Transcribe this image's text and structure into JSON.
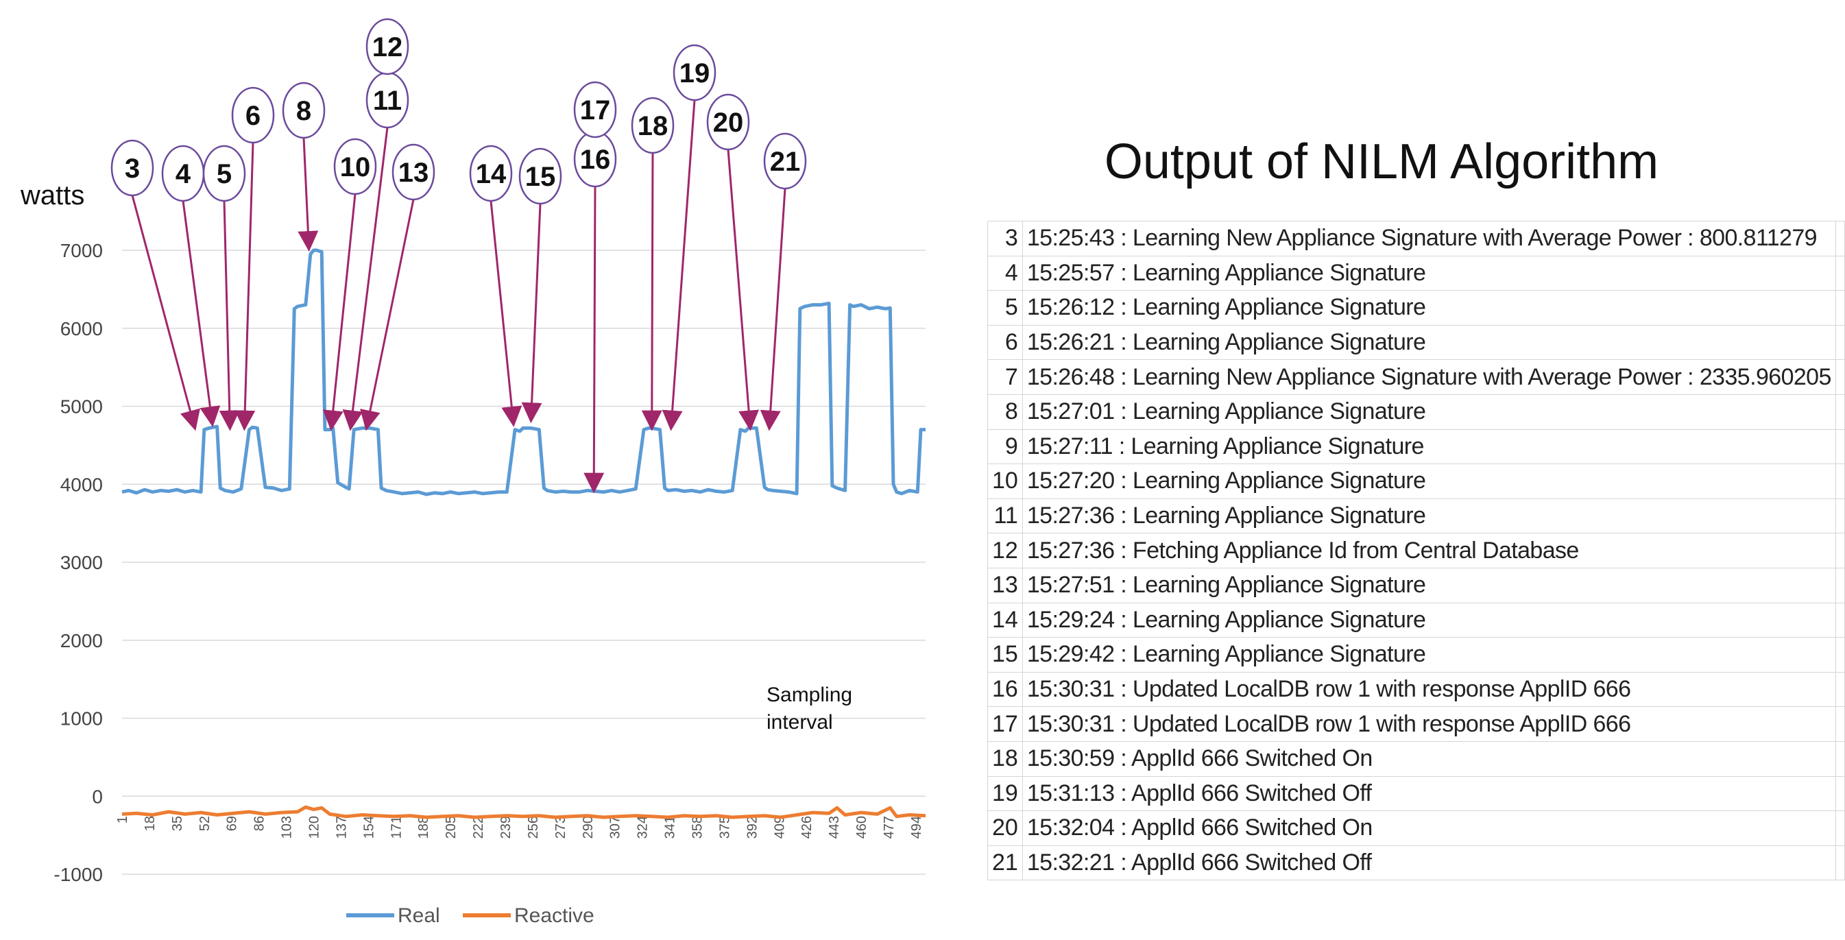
{
  "chart_data": {
    "type": "line",
    "ylabel": "watts",
    "xlabel": "Sampling interval",
    "ylim": [
      -1000,
      7000
    ],
    "yticks": [
      "7000",
      "6000",
      "5000",
      "4000",
      "3000",
      "2000",
      "1000",
      "0",
      "-1000"
    ],
    "xtick_labels": [
      "1",
      "18",
      "35",
      "52",
      "69",
      "86",
      "103",
      "120",
      "137",
      "154",
      "171",
      "188",
      "205",
      "222",
      "239",
      "256",
      "273",
      "290",
      "307",
      "324",
      "341",
      "358",
      "375",
      "392",
      "409",
      "426",
      "443",
      "460",
      "477",
      "494"
    ],
    "grid": true,
    "legend": "bottom",
    "series": [
      {
        "name": "Real",
        "color": "#5b9bd5",
        "x": [
          1,
          5,
          10,
          15,
          20,
          25,
          30,
          35,
          40,
          45,
          50,
          52,
          55,
          60,
          62,
          65,
          70,
          75,
          80,
          82,
          85,
          90,
          95,
          100,
          105,
          108,
          110,
          115,
          118,
          120,
          122,
          125,
          127,
          130,
          132,
          135,
          140,
          142,
          145,
          150,
          152,
          155,
          160,
          162,
          165,
          170,
          175,
          180,
          185,
          190,
          195,
          200,
          205,
          210,
          215,
          220,
          225,
          230,
          235,
          240,
          245,
          248,
          250,
          255,
          260,
          263,
          265,
          270,
          275,
          280,
          285,
          290,
          295,
          300,
          305,
          310,
          315,
          320,
          325,
          328,
          330,
          335,
          338,
          340,
          345,
          350,
          355,
          360,
          365,
          370,
          375,
          380,
          385,
          388,
          390,
          395,
          400,
          402,
          405,
          410,
          415,
          420,
          422,
          425,
          430,
          435,
          440,
          442,
          445,
          450,
          453,
          455,
          460,
          465,
          470,
          475,
          478,
          480,
          482,
          485,
          490,
          495,
          497,
          500
        ],
        "y": [
          3900,
          3920,
          3890,
          3930,
          3900,
          3920,
          3910,
          3930,
          3900,
          3920,
          3900,
          4700,
          4720,
          4740,
          3950,
          3920,
          3900,
          3940,
          4700,
          4730,
          4720,
          3960,
          3950,
          3920,
          3940,
          6250,
          6280,
          6300,
          6950,
          7000,
          7000,
          6980,
          4700,
          4700,
          4720,
          4020,
          3960,
          3940,
          4700,
          4720,
          4720,
          4720,
          4700,
          3950,
          3920,
          3900,
          3880,
          3890,
          3900,
          3870,
          3890,
          3880,
          3900,
          3880,
          3890,
          3900,
          3880,
          3890,
          3900,
          3900,
          4700,
          4680,
          4720,
          4720,
          4700,
          3950,
          3920,
          3900,
          3910,
          3900,
          3900,
          3920,
          3910,
          3900,
          3920,
          3900,
          3920,
          3940,
          4700,
          4720,
          4720,
          4700,
          3950,
          3920,
          3930,
          3910,
          3920,
          3900,
          3930,
          3910,
          3900,
          3920,
          4700,
          4680,
          4720,
          4720,
          3960,
          3930,
          3920,
          3910,
          3900,
          3880,
          6250,
          6280,
          6300,
          6300,
          6320,
          3980,
          3950,
          3920,
          6300,
          6280,
          6300,
          6250,
          6270,
          6250,
          6260,
          4000,
          3900,
          3880,
          3920,
          3900,
          4700,
          4700
        ]
      },
      {
        "name": "Reactive",
        "color": "#ed7d31",
        "x": [
          1,
          10,
          20,
          30,
          40,
          50,
          60,
          70,
          80,
          90,
          100,
          110,
          115,
          120,
          125,
          130,
          140,
          150,
          160,
          170,
          180,
          190,
          200,
          210,
          220,
          230,
          240,
          250,
          260,
          270,
          280,
          290,
          300,
          310,
          320,
          330,
          340,
          350,
          360,
          370,
          380,
          390,
          400,
          410,
          420,
          430,
          440,
          445,
          450,
          460,
          470,
          478,
          482,
          490,
          500
        ],
        "y": [
          -230,
          -220,
          -240,
          -200,
          -230,
          -210,
          -240,
          -220,
          -200,
          -230,
          -210,
          -200,
          -140,
          -170,
          -150,
          -230,
          -260,
          -240,
          -250,
          -260,
          -250,
          -270,
          -260,
          -250,
          -270,
          -260,
          -250,
          -260,
          -250,
          -270,
          -260,
          -250,
          -270,
          -260,
          -250,
          -260,
          -270,
          -250,
          -260,
          -250,
          -270,
          -260,
          -250,
          -270,
          -240,
          -210,
          -220,
          -150,
          -240,
          -210,
          -230,
          -150,
          -260,
          -240,
          -250
        ]
      }
    ],
    "annotations": [
      {
        "label": "3",
        "x": 46,
        "y": 4700
      },
      {
        "label": "4",
        "x": 57,
        "y": 4750
      },
      {
        "label": "5",
        "x": 68,
        "y": 4700
      },
      {
        "label": "6",
        "x": 77,
        "y": 4700
      },
      {
        "label": "8",
        "x": 117,
        "y": 7000
      },
      {
        "label": "10",
        "x": 131,
        "y": 4700
      },
      {
        "label": "11",
        "x": 143,
        "y": 4700
      },
      {
        "label": "12",
        "x": 143,
        "y": 4700
      },
      {
        "label": "13",
        "x": 153,
        "y": 4700
      },
      {
        "label": "14",
        "x": 244,
        "y": 4750
      },
      {
        "label": "15",
        "x": 255,
        "y": 4800
      },
      {
        "label": "16",
        "x": 294,
        "y": 3900
      },
      {
        "label": "17",
        "x": 294,
        "y": 3900
      },
      {
        "label": "18",
        "x": 330,
        "y": 4700
      },
      {
        "label": "19",
        "x": 342,
        "y": 4700
      },
      {
        "label": "20",
        "x": 391,
        "y": 4700
      },
      {
        "label": "21",
        "x": 403,
        "y": 4700
      }
    ]
  },
  "output_panel": {
    "title": "Output of NILM Algorithm",
    "rows": [
      {
        "num": "3",
        "text": "15:25:43 : Learning New Appliance Signature with Average Power : 800.811279"
      },
      {
        "num": "4",
        "text": "15:25:57 : Learning Appliance Signature"
      },
      {
        "num": "5",
        "text": "15:26:12 : Learning Appliance Signature"
      },
      {
        "num": "6",
        "text": "15:26:21 : Learning Appliance Signature"
      },
      {
        "num": "7",
        "text": "15:26:48 : Learning New Appliance Signature with Average Power : 2335.960205"
      },
      {
        "num": "8",
        "text": "15:27:01 : Learning Appliance Signature"
      },
      {
        "num": "9",
        "text": "15:27:11 : Learning Appliance Signature"
      },
      {
        "num": "10",
        "text": "15:27:20 : Learning Appliance Signature"
      },
      {
        "num": "11",
        "text": "15:27:36 : Learning Appliance Signature"
      },
      {
        "num": "12",
        "text": "15:27:36 : Fetching Appliance Id from Central Database"
      },
      {
        "num": "13",
        "text": "15:27:51 : Learning Appliance Signature"
      },
      {
        "num": "14",
        "text": "15:29:24 : Learning Appliance Signature"
      },
      {
        "num": "15",
        "text": "15:29:42 : Learning Appliance Signature"
      },
      {
        "num": "16",
        "text": "15:30:31 : Updated LocalDB row 1 with response ApplID 666"
      },
      {
        "num": "17",
        "text": "15:30:31 : Updated LocalDB row 1 with response ApplID 666"
      },
      {
        "num": "18",
        "text": "15:30:59 : ApplId 666 Switched On"
      },
      {
        "num": "19",
        "text": "15:31:13 : ApplId 666 Switched Off"
      },
      {
        "num": "20",
        "text": "15:32:04 : ApplId 666 Switched On"
      },
      {
        "num": "21",
        "text": "15:32:21 : ApplId 666 Switched Off"
      }
    ]
  }
}
